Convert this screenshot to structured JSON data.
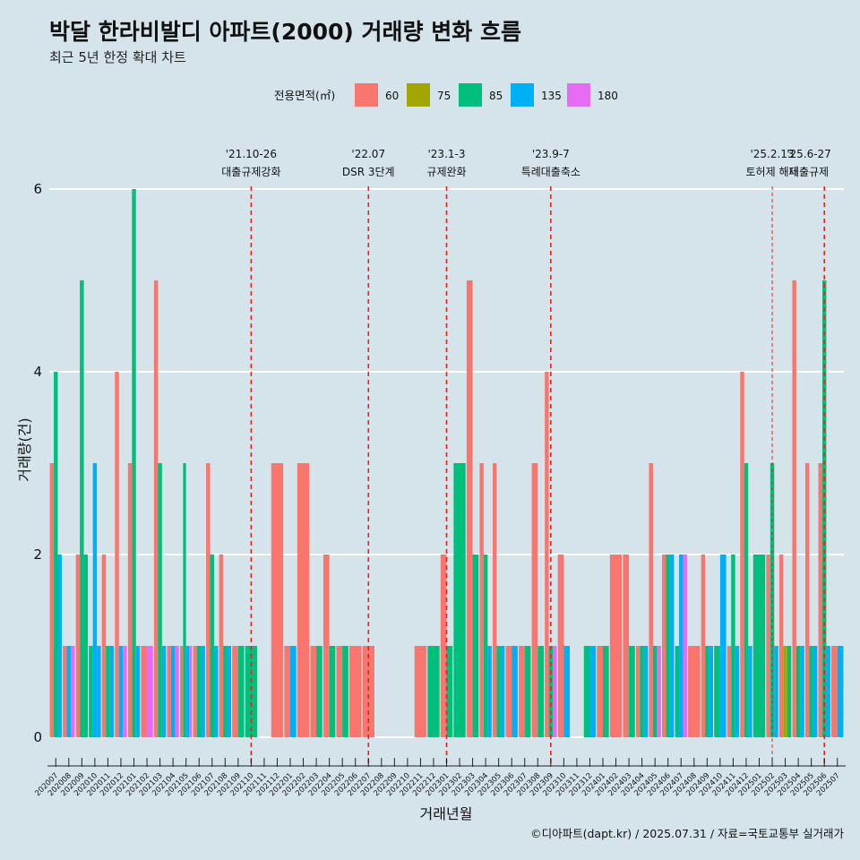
{
  "chart_data": {
    "type": "bar",
    "title": "박달 한라비발디 아파트(2000) 거래량 변화 흐름",
    "subtitle": "최근 5년 한정 확대 차트",
    "xlabel": "거래년월",
    "ylabel": "거래량(건)",
    "ylim": [
      -0.4,
      6.6
    ],
    "yticks": [
      0,
      2,
      4,
      6
    ],
    "legend": {
      "title": "전용면적(㎡)",
      "placement": "top",
      "entries": [
        {
          "name": "60",
          "color": "#f8766d"
        },
        {
          "name": "75",
          "color": "#a3a500"
        },
        {
          "name": "85",
          "color": "#00bf7d"
        },
        {
          "name": "135",
          "color": "#00b0f6"
        },
        {
          "name": "180",
          "color": "#e76bf3"
        }
      ]
    },
    "categories": [
      "202007",
      "202008",
      "202009",
      "202010",
      "202011",
      "202012",
      "202101",
      "202102",
      "202103",
      "202104",
      "202105",
      "202106",
      "202107",
      "202108",
      "202109",
      "202110",
      "202111",
      "202112",
      "202201",
      "202202",
      "202203",
      "202204",
      "202205",
      "202206",
      "202207",
      "202208",
      "202209",
      "202210",
      "202211",
      "202212",
      "202301",
      "202302",
      "202303",
      "202304",
      "202305",
      "202306",
      "202307",
      "202308",
      "202309",
      "202310",
      "202311",
      "202312",
      "202401",
      "202402",
      "202403",
      "202404",
      "202405",
      "202406",
      "202407",
      "202408",
      "202409",
      "202410",
      "202411",
      "202412",
      "202501",
      "202502",
      "202503",
      "202504",
      "202505",
      "202506",
      "202507"
    ],
    "x_tick_labels": [
      "202007",
      "202008",
      "202009",
      "202010",
      "202011",
      "202012",
      "202101",
      "202102",
      "202103",
      "202104",
      "202105",
      "202106",
      "202107",
      "202108",
      "202109",
      "202110",
      "202111",
      "202112",
      "202201",
      "202202",
      "202203",
      "202204",
      "202205",
      "202206",
      "202207",
      "202208",
      "202209",
      "202210",
      "202211",
      "202212",
      "202301",
      "202302",
      "202303",
      "202304",
      "202305",
      "202306",
      "202307",
      "202308",
      "202309",
      "202310",
      "202311",
      "202312",
      "202401",
      "202402",
      "202403",
      "202404",
      "202405",
      "202406",
      "202407",
      "202408",
      "202409",
      "202410",
      "202411",
      "202412",
      "202501",
      "202502",
      "202503",
      "202504",
      "202505",
      "202506",
      "202507"
    ],
    "months": [
      {
        "m": "202007",
        "bars": [
          [
            "60",
            3
          ],
          [
            "85",
            4
          ],
          [
            "135",
            2
          ]
        ]
      },
      {
        "m": "202008",
        "bars": [
          [
            "60",
            1
          ],
          [
            "135",
            1
          ],
          [
            "180",
            1
          ]
        ]
      },
      {
        "m": "202009",
        "bars": [
          [
            "60",
            2
          ],
          [
            "85",
            5
          ],
          [
            "85",
            2
          ]
        ]
      },
      {
        "m": "202010",
        "bars": [
          [
            "85",
            1
          ],
          [
            "135",
            3
          ],
          [
            "135",
            1
          ]
        ]
      },
      {
        "m": "202011",
        "bars": [
          [
            "60",
            2
          ],
          [
            "85",
            1
          ],
          [
            "135",
            1
          ]
        ]
      },
      {
        "m": "202012",
        "bars": [
          [
            "60",
            4
          ],
          [
            "135",
            1
          ],
          [
            "180",
            1
          ]
        ]
      },
      {
        "m": "202101",
        "bars": [
          [
            "60",
            3
          ],
          [
            "85",
            6
          ],
          [
            "135",
            1
          ]
        ]
      },
      {
        "m": "202102",
        "bars": [
          [
            "60",
            1
          ],
          [
            "180",
            1
          ]
        ]
      },
      {
        "m": "202103",
        "bars": [
          [
            "60",
            5
          ],
          [
            "85",
            3
          ],
          [
            "135",
            1
          ]
        ]
      },
      {
        "m": "202104",
        "bars": [
          [
            "60",
            1
          ],
          [
            "135",
            1
          ],
          [
            "180",
            1
          ]
        ]
      },
      {
        "m": "202105",
        "bars": [
          [
            "60",
            1
          ],
          [
            "85",
            3
          ],
          [
            "135",
            1
          ],
          [
            "180",
            1
          ]
        ]
      },
      {
        "m": "202106",
        "bars": [
          [
            "60",
            1
          ],
          [
            "85",
            1
          ],
          [
            "135",
            1
          ]
        ]
      },
      {
        "m": "202107",
        "bars": [
          [
            "60",
            3
          ],
          [
            "85",
            2
          ],
          [
            "135",
            1
          ]
        ]
      },
      {
        "m": "202108",
        "bars": [
          [
            "60",
            2
          ],
          [
            "85",
            1
          ],
          [
            "135",
            1
          ]
        ]
      },
      {
        "m": "202109",
        "bars": [
          [
            "60",
            1
          ],
          [
            "85",
            1
          ]
        ]
      },
      {
        "m": "202110",
        "bars": [
          [
            "85",
            1
          ]
        ]
      },
      {
        "m": "202111",
        "bars": []
      },
      {
        "m": "202112",
        "bars": [
          [
            "60",
            3
          ]
        ]
      },
      {
        "m": "202201",
        "bars": [
          [
            "60",
            1
          ],
          [
            "135",
            1
          ]
        ]
      },
      {
        "m": "202202",
        "bars": [
          [
            "60",
            3
          ]
        ]
      },
      {
        "m": "202203",
        "bars": [
          [
            "60",
            1
          ],
          [
            "85",
            1
          ]
        ]
      },
      {
        "m": "202204",
        "bars": [
          [
            "60",
            2
          ],
          [
            "85",
            1
          ]
        ]
      },
      {
        "m": "202205",
        "bars": [
          [
            "60",
            1
          ],
          [
            "85",
            1
          ]
        ]
      },
      {
        "m": "202206",
        "bars": [
          [
            "60",
            1
          ]
        ]
      },
      {
        "m": "202207",
        "bars": [
          [
            "60",
            1
          ]
        ]
      },
      {
        "m": "202208",
        "bars": []
      },
      {
        "m": "202209",
        "bars": []
      },
      {
        "m": "202210",
        "bars": []
      },
      {
        "m": "202211",
        "bars": [
          [
            "60",
            1
          ]
        ]
      },
      {
        "m": "202212",
        "bars": [
          [
            "85",
            1
          ]
        ]
      },
      {
        "m": "202301",
        "bars": [
          [
            "60",
            2
          ],
          [
            "85",
            1
          ]
        ]
      },
      {
        "m": "202302",
        "bars": [
          [
            "85",
            3
          ]
        ]
      },
      {
        "m": "202303",
        "bars": [
          [
            "60",
            5
          ],
          [
            "85",
            2
          ]
        ]
      },
      {
        "m": "202304",
        "bars": [
          [
            "60",
            3
          ],
          [
            "85",
            2
          ],
          [
            "135",
            1
          ]
        ]
      },
      {
        "m": "202305",
        "bars": [
          [
            "60",
            3
          ],
          [
            "85",
            1
          ],
          [
            "135",
            1
          ]
        ]
      },
      {
        "m": "202306",
        "bars": [
          [
            "60",
            1
          ],
          [
            "135",
            1
          ]
        ]
      },
      {
        "m": "202307",
        "bars": [
          [
            "60",
            1
          ],
          [
            "85",
            1
          ]
        ]
      },
      {
        "m": "202308",
        "bars": [
          [
            "60",
            3
          ],
          [
            "85",
            1
          ]
        ]
      },
      {
        "m": "202309",
        "bars": [
          [
            "60",
            4
          ],
          [
            "85",
            1
          ],
          [
            "180",
            1
          ]
        ]
      },
      {
        "m": "202310",
        "bars": [
          [
            "60",
            2
          ],
          [
            "135",
            1
          ]
        ]
      },
      {
        "m": "202311",
        "bars": []
      },
      {
        "m": "202312",
        "bars": [
          [
            "85",
            1
          ],
          [
            "135",
            1
          ]
        ]
      },
      {
        "m": "202401",
        "bars": [
          [
            "60",
            1
          ],
          [
            "85",
            1
          ]
        ]
      },
      {
        "m": "202402",
        "bars": [
          [
            "60",
            2
          ]
        ]
      },
      {
        "m": "202403",
        "bars": [
          [
            "60",
            2
          ],
          [
            "85",
            1
          ]
        ]
      },
      {
        "m": "202404",
        "bars": [
          [
            "60",
            1
          ],
          [
            "85",
            1
          ],
          [
            "135",
            1
          ]
        ]
      },
      {
        "m": "202405",
        "bars": [
          [
            "60",
            3
          ],
          [
            "85",
            1
          ],
          [
            "180",
            1
          ]
        ]
      },
      {
        "m": "202406",
        "bars": [
          [
            "60",
            2
          ],
          [
            "85",
            2
          ],
          [
            "135",
            2
          ]
        ]
      },
      {
        "m": "202407",
        "bars": [
          [
            "85",
            1
          ],
          [
            "135",
            2
          ],
          [
            "180",
            2
          ]
        ]
      },
      {
        "m": "202408",
        "bars": [
          [
            "60",
            1
          ]
        ]
      },
      {
        "m": "202409",
        "bars": [
          [
            "60",
            2
          ],
          [
            "85",
            1
          ],
          [
            "135",
            1
          ]
        ]
      },
      {
        "m": "202410",
        "bars": [
          [
            "85",
            1
          ],
          [
            "135",
            2
          ]
        ]
      },
      {
        "m": "202411",
        "bars": [
          [
            "60",
            1
          ],
          [
            "85",
            2
          ],
          [
            "135",
            1
          ]
        ]
      },
      {
        "m": "202412",
        "bars": [
          [
            "60",
            4
          ],
          [
            "85",
            3
          ],
          [
            "135",
            1
          ]
        ]
      },
      {
        "m": "202501",
        "bars": [
          [
            "85",
            2
          ]
        ]
      },
      {
        "m": "202502",
        "bars": [
          [
            "60",
            2
          ],
          [
            "85",
            3
          ],
          [
            "135",
            1
          ]
        ]
      },
      {
        "m": "202503",
        "bars": [
          [
            "60",
            2
          ],
          [
            "75",
            1
          ],
          [
            "85",
            1
          ]
        ]
      },
      {
        "m": "202504",
        "bars": [
          [
            "60",
            5
          ],
          [
            "85",
            1
          ],
          [
            "135",
            1
          ]
        ]
      },
      {
        "m": "202505",
        "bars": [
          [
            "60",
            3
          ],
          [
            "85",
            1
          ],
          [
            "135",
            1
          ]
        ]
      },
      {
        "m": "202506",
        "bars": [
          [
            "60",
            3
          ],
          [
            "85",
            5
          ],
          [
            "135",
            1
          ]
        ]
      },
      {
        "m": "202507",
        "bars": [
          [
            "60",
            1
          ],
          [
            "135",
            1
          ]
        ]
      }
    ],
    "annotations": [
      {
        "at": "202110",
        "date": "'21.10-26",
        "label": "대출규제강화",
        "style": "dashed"
      },
      {
        "at": "202207",
        "date": "'22.07",
        "label": "DSR 3단계",
        "style": "dashed"
      },
      {
        "at": "202301",
        "date": "'23.1-3",
        "label": "규제완화",
        "style": "dashed"
      },
      {
        "at": "202309",
        "date": "'23.9-7",
        "label": "특례대출축소",
        "style": "dashed"
      },
      {
        "at": "202502",
        "date": "'25.2.13",
        "label": "토허제 해제",
        "style": "dotted"
      },
      {
        "at": "202506",
        "date": "'25.6-27",
        "label": "대출규제",
        "style": "dashed"
      }
    ],
    "caption": "©디아파트(dapt.kr) / 2025.07.31 / 자료=국토교통부 실거래가",
    "grid": true
  }
}
